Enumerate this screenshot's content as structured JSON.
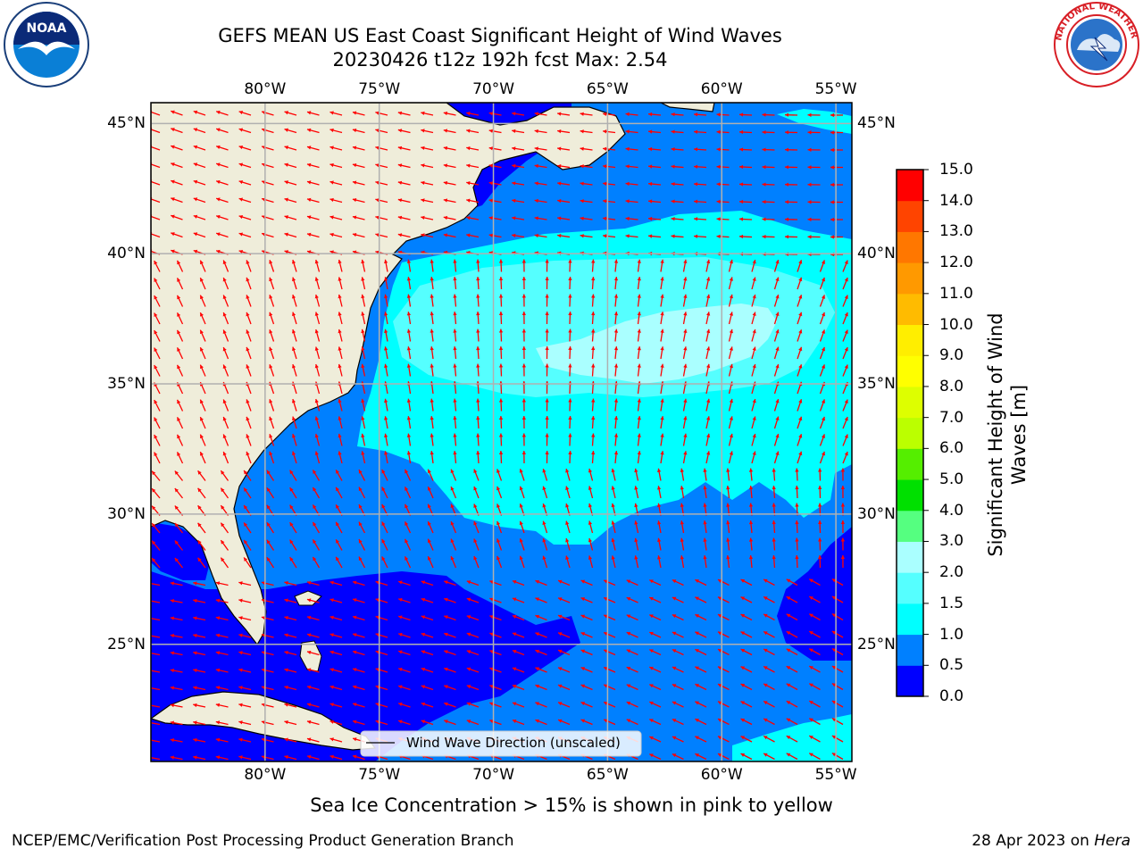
{
  "title_line1": "GEFS MEAN US East Coast Significant Height of Wind Waves",
  "title_line2": "20230426 t12z 192h fcst   Max: 2.54",
  "map": {
    "lon_labels": [
      "80°W",
      "75°W",
      "70°W",
      "65°W",
      "60°W",
      "55°W"
    ],
    "lat_labels": [
      "45°N",
      "40°N",
      "35°N",
      "30°N",
      "25°N"
    ],
    "lon_values": [
      -80,
      -75,
      -70,
      -65,
      -60,
      -55
    ],
    "lat_values": [
      45,
      40,
      35,
      30,
      25
    ],
    "lon_range": [
      -85,
      -54.3
    ],
    "lat_range": [
      20.5,
      45.8
    ],
    "legend_label": "Wind Wave Direction (unscaled)",
    "colors": {
      "land": "#efedda",
      "arrow": "#ff0000",
      "grid": "#b0b0b0",
      "coast": "#000000"
    }
  },
  "colorbar": {
    "label": "Significant Height of Wind Waves [m]",
    "label_line1": "Significant Height of Wind",
    "label_line2": "Waves [m]",
    "ticks": [
      "0.0",
      "0.5",
      "1.0",
      "1.5",
      "2.0",
      "3.0",
      "4.0",
      "5.0",
      "6.0",
      "7.0",
      "8.0",
      "9.0",
      "10.0",
      "11.0",
      "12.0",
      "13.0",
      "14.0",
      "15.0"
    ],
    "bins": [
      {
        "from": 0.0,
        "to": 0.5,
        "color": "#0000ff"
      },
      {
        "from": 0.5,
        "to": 1.0,
        "color": "#0080ff"
      },
      {
        "from": 1.0,
        "to": 1.5,
        "color": "#00ffff"
      },
      {
        "from": 1.5,
        "to": 2.0,
        "color": "#55ffff"
      },
      {
        "from": 2.0,
        "to": 3.0,
        "color": "#aaffff"
      },
      {
        "from": 3.0,
        "to": 4.0,
        "color": "#55ff80"
      },
      {
        "from": 4.0,
        "to": 5.0,
        "color": "#00e000"
      },
      {
        "from": 5.0,
        "to": 6.0,
        "color": "#55ee00"
      },
      {
        "from": 6.0,
        "to": 7.0,
        "color": "#bbff00"
      },
      {
        "from": 7.0,
        "to": 8.0,
        "color": "#ddff00"
      },
      {
        "from": 8.0,
        "to": 9.0,
        "color": "#ffff00"
      },
      {
        "from": 9.0,
        "to": 10.0,
        "color": "#ffee00"
      },
      {
        "from": 10.0,
        "to": 11.0,
        "color": "#ffbb00"
      },
      {
        "from": 11.0,
        "to": 12.0,
        "color": "#ff9900"
      },
      {
        "from": 12.0,
        "to": 13.0,
        "color": "#ff7700"
      },
      {
        "from": 13.0,
        "to": 14.0,
        "color": "#ff4400"
      },
      {
        "from": 14.0,
        "to": 15.0,
        "color": "#ff0000"
      }
    ]
  },
  "sea_ice_note": "Sea Ice Concentration > 15% is shown in pink to yellow",
  "footer_left": "NCEP/EMC/Verification Post Processing Product Generation Branch",
  "footer_right_date": "28 Apr 2023 on ",
  "footer_right_machine": "Hera",
  "noaa_logo": {
    "text": "NOAA",
    "icon": "noaa-seagull-logo"
  },
  "nws_logo": {
    "text": "NATIONAL WEATHER SERVICE",
    "icon": "nws-storm-logo"
  }
}
